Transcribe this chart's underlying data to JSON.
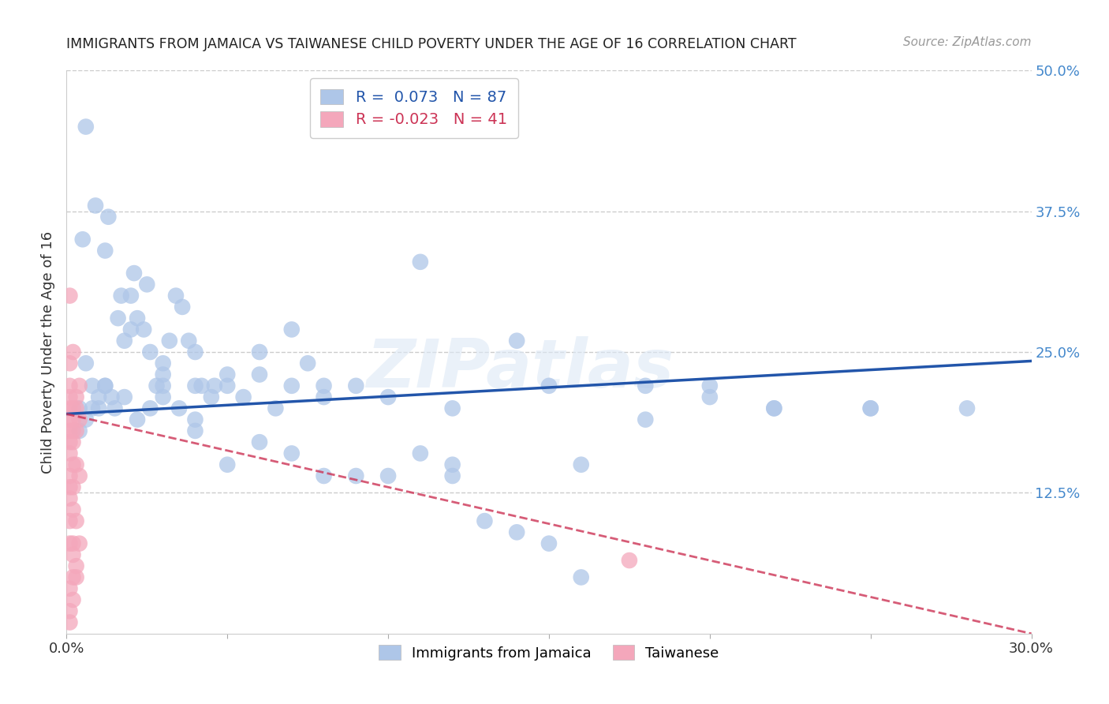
{
  "title": "IMMIGRANTS FROM JAMAICA VS TAIWANESE CHILD POVERTY UNDER THE AGE OF 16 CORRELATION CHART",
  "source": "Source: ZipAtlas.com",
  "ylabel": "Child Poverty Under the Age of 16",
  "xlim": [
    0.0,
    0.3
  ],
  "ylim": [
    0.0,
    0.5
  ],
  "blue_R": 0.073,
  "blue_N": 87,
  "pink_R": -0.023,
  "pink_N": 41,
  "blue_color": "#aec6e8",
  "blue_line_color": "#2255aa",
  "pink_color": "#f4a7bb",
  "pink_line_color": "#cc3355",
  "blue_trend_x0": 0.0,
  "blue_trend_y0": 0.195,
  "blue_trend_x1": 0.3,
  "blue_trend_y1": 0.242,
  "pink_trend_x0": 0.0,
  "pink_trend_y0": 0.195,
  "pink_trend_x1": 0.3,
  "pink_trend_y1": 0.0,
  "blue_scatter_x": [
    0.004,
    0.006,
    0.008,
    0.01,
    0.012,
    0.014,
    0.016,
    0.018,
    0.02,
    0.022,
    0.024,
    0.026,
    0.028,
    0.03,
    0.032,
    0.034,
    0.036,
    0.038,
    0.04,
    0.042,
    0.046,
    0.05,
    0.055,
    0.06,
    0.065,
    0.07,
    0.075,
    0.08,
    0.09,
    0.1,
    0.11,
    0.12,
    0.13,
    0.14,
    0.15,
    0.16,
    0.18,
    0.2,
    0.22,
    0.25,
    0.004,
    0.006,
    0.008,
    0.01,
    0.012,
    0.015,
    0.018,
    0.022,
    0.026,
    0.03,
    0.035,
    0.04,
    0.045,
    0.05,
    0.06,
    0.07,
    0.08,
    0.1,
    0.12,
    0.15,
    0.005,
    0.009,
    0.013,
    0.017,
    0.021,
    0.025,
    0.03,
    0.04,
    0.05,
    0.07,
    0.09,
    0.11,
    0.14,
    0.18,
    0.22,
    0.28,
    0.006,
    0.012,
    0.02,
    0.03,
    0.04,
    0.06,
    0.08,
    0.12,
    0.16,
    0.2,
    0.25
  ],
  "blue_scatter_y": [
    0.2,
    0.24,
    0.22,
    0.2,
    0.22,
    0.21,
    0.28,
    0.26,
    0.3,
    0.28,
    0.27,
    0.25,
    0.22,
    0.24,
    0.26,
    0.3,
    0.29,
    0.26,
    0.25,
    0.22,
    0.22,
    0.22,
    0.21,
    0.23,
    0.2,
    0.22,
    0.24,
    0.21,
    0.22,
    0.14,
    0.16,
    0.15,
    0.1,
    0.09,
    0.08,
    0.05,
    0.19,
    0.21,
    0.2,
    0.2,
    0.18,
    0.19,
    0.2,
    0.21,
    0.22,
    0.2,
    0.21,
    0.19,
    0.2,
    0.21,
    0.2,
    0.19,
    0.21,
    0.23,
    0.25,
    0.27,
    0.22,
    0.21,
    0.2,
    0.22,
    0.35,
    0.38,
    0.37,
    0.3,
    0.32,
    0.31,
    0.23,
    0.22,
    0.15,
    0.16,
    0.14,
    0.33,
    0.26,
    0.22,
    0.2,
    0.2,
    0.45,
    0.34,
    0.27,
    0.22,
    0.18,
    0.17,
    0.14,
    0.14,
    0.15,
    0.22,
    0.2
  ],
  "pink_scatter_x": [
    0.001,
    0.001,
    0.001,
    0.001,
    0.001,
    0.001,
    0.001,
    0.001,
    0.001,
    0.001,
    0.001,
    0.001,
    0.002,
    0.002,
    0.002,
    0.002,
    0.002,
    0.002,
    0.002,
    0.002,
    0.002,
    0.003,
    0.003,
    0.003,
    0.003,
    0.003,
    0.004,
    0.004,
    0.004,
    0.004,
    0.001,
    0.001,
    0.001,
    0.001,
    0.001,
    0.002,
    0.002,
    0.002,
    0.003,
    0.003,
    0.175
  ],
  "pink_scatter_y": [
    0.2,
    0.21,
    0.22,
    0.19,
    0.18,
    0.17,
    0.16,
    0.14,
    0.13,
    0.12,
    0.1,
    0.08,
    0.2,
    0.19,
    0.18,
    0.17,
    0.15,
    0.13,
    0.11,
    0.08,
    0.05,
    0.21,
    0.18,
    0.15,
    0.1,
    0.06,
    0.22,
    0.19,
    0.14,
    0.08,
    0.24,
    0.3,
    0.04,
    0.02,
    0.01,
    0.25,
    0.07,
    0.03,
    0.2,
    0.05,
    0.065
  ],
  "watermark": "ZIPatlas",
  "legend_blue_label": "Immigrants from Jamaica",
  "legend_pink_label": "Taiwanese",
  "background_color": "#ffffff",
  "grid_color": "#cccccc",
  "title_color": "#222222",
  "right_tick_color": "#4488cc"
}
